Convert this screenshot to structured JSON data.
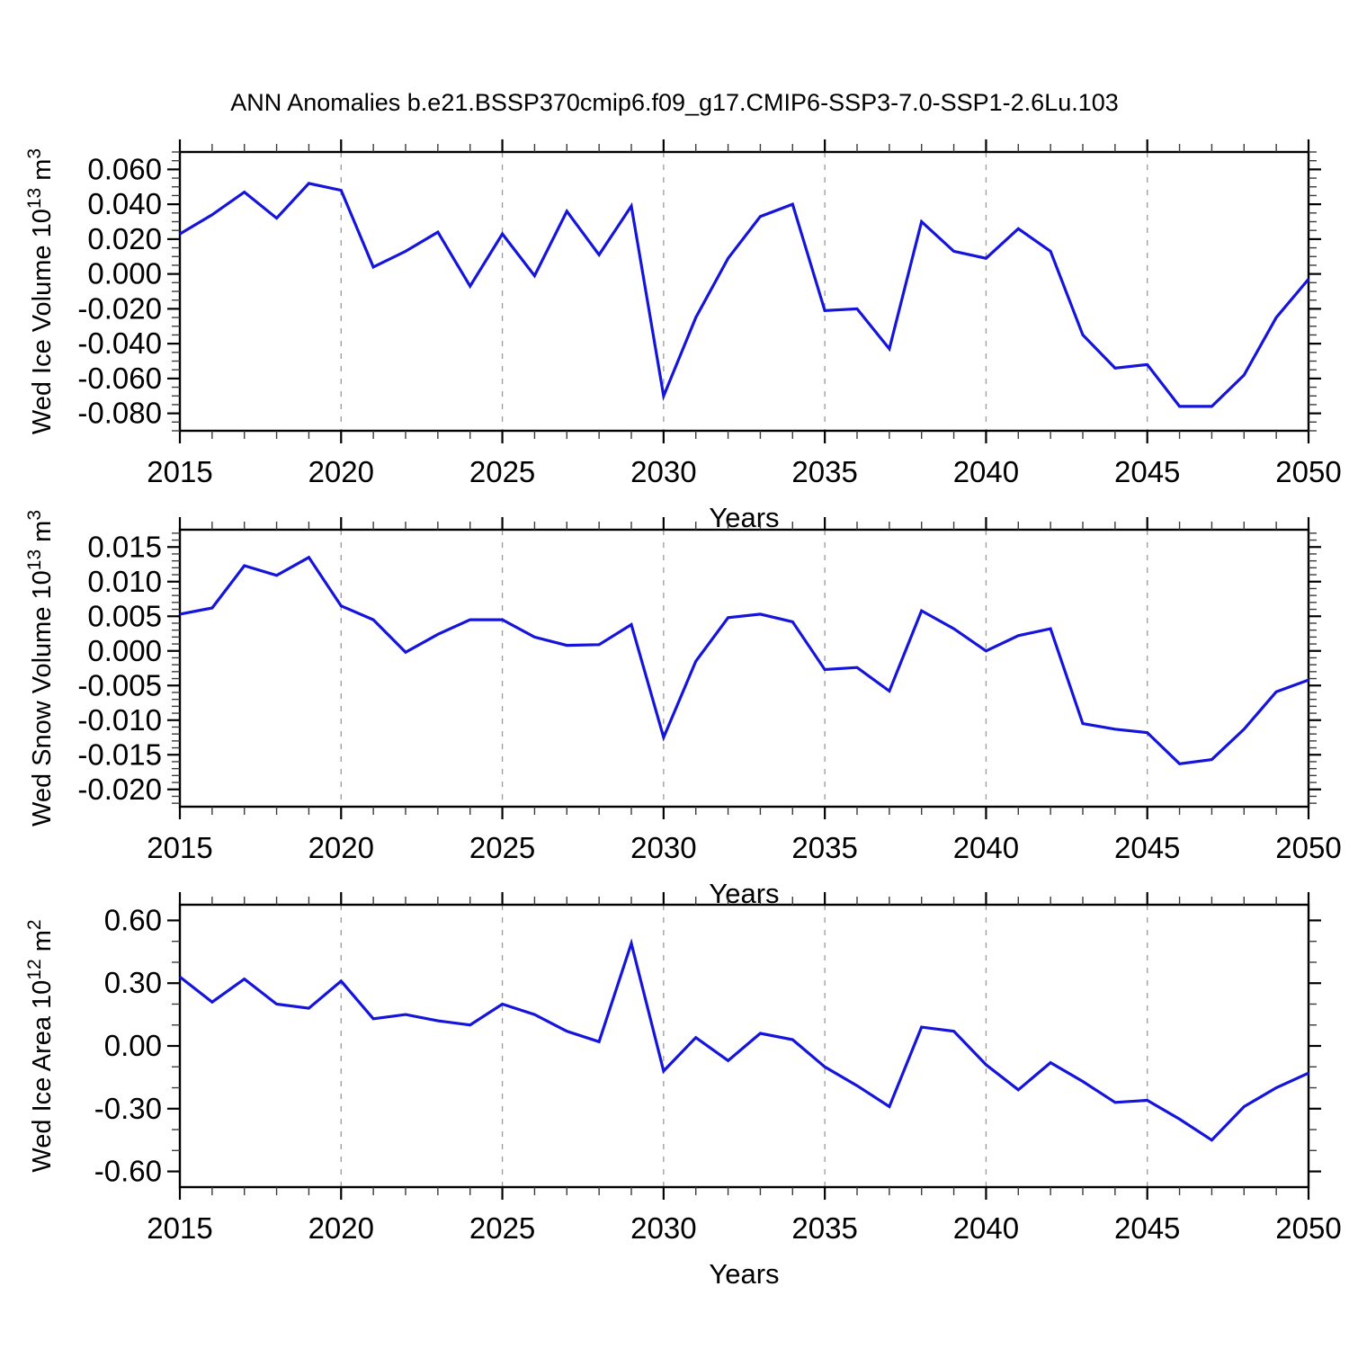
{
  "title": "ANN Anomalies b.e21.BSSP370cmip6.f09_g17.CMIP6-SSP3-7.0-SSP1-2.6Lu.103",
  "chart_data": {
    "type": "line",
    "line_color": "#1414DC",
    "axis_color": "#000000",
    "grid_color": "#9a9a9a",
    "grid_style": "dashed-vertical",
    "legend": "none",
    "xlabel": "Years",
    "xlim": [
      2015,
      2050
    ],
    "xtick_labels": [
      "2015",
      "2020",
      "2025",
      "2030",
      "2035",
      "2040",
      "2045",
      "2050"
    ],
    "xtick_values": [
      2015,
      2020,
      2025,
      2030,
      2035,
      2040,
      2045,
      2050
    ],
    "xminor_step": 1,
    "grid_x": [
      2020,
      2025,
      2030,
      2035,
      2040,
      2045
    ],
    "years": [
      2015,
      2016,
      2017,
      2018,
      2019,
      2020,
      2021,
      2022,
      2023,
      2024,
      2025,
      2026,
      2027,
      2028,
      2029,
      2030,
      2031,
      2032,
      2033,
      2034,
      2035,
      2036,
      2037,
      2038,
      2039,
      2040,
      2041,
      2042,
      2043,
      2044,
      2045,
      2046,
      2047,
      2048,
      2049,
      2050
    ],
    "panels": [
      {
        "name": "wed-ice-volume",
        "ylabel": "Wed Ice Volume 10^13 m^3",
        "ylabel_parts": [
          {
            "text": "Wed Ice Volume 10",
            "sup": false
          },
          {
            "text": "13",
            "sup": true
          },
          {
            "text": " m",
            "sup": false
          },
          {
            "text": "3",
            "sup": true
          }
        ],
        "ylim": [
          -0.09,
          0.07
        ],
        "ytick_labels": [
          "0.060",
          "0.040",
          "0.020",
          "0.000",
          "-0.020",
          "-0.040",
          "-0.060",
          "-0.080"
        ],
        "ytick_values": [
          0.06,
          0.04,
          0.02,
          0.0,
          -0.02,
          -0.04,
          -0.06,
          -0.08
        ],
        "yminor_step": 0.005,
        "values": [
          0.023,
          0.034,
          0.047,
          0.032,
          0.052,
          0.048,
          0.004,
          0.013,
          0.024,
          -0.007,
          0.023,
          -0.001,
          0.036,
          0.011,
          0.039,
          -0.07,
          -0.025,
          0.009,
          0.033,
          0.04,
          -0.021,
          -0.02,
          -0.043,
          0.03,
          0.013,
          0.009,
          0.026,
          0.013,
          -0.035,
          -0.054,
          -0.052,
          -0.076,
          -0.076,
          -0.058,
          -0.025,
          -0.003
        ]
      },
      {
        "name": "wed-snow-volume",
        "ylabel": "Wed Snow Volume 10^13 m^3",
        "ylabel_parts": [
          {
            "text": "Wed Snow Volume 10",
            "sup": false
          },
          {
            "text": "13",
            "sup": true
          },
          {
            "text": " m",
            "sup": false
          },
          {
            "text": "3",
            "sup": true
          }
        ],
        "ylim": [
          -0.0225,
          0.0175
        ],
        "ytick_labels": [
          "0.015",
          "0.010",
          "0.005",
          "0.000",
          "-0.005",
          "-0.010",
          "-0.015",
          "-0.020"
        ],
        "ytick_values": [
          0.015,
          0.01,
          0.005,
          0.0,
          -0.005,
          -0.01,
          -0.015,
          -0.02
        ],
        "yminor_step": 0.001,
        "values": [
          0.0053,
          0.0062,
          0.0123,
          0.0109,
          0.0135,
          0.0065,
          0.0045,
          -0.0002,
          0.0024,
          0.0045,
          0.0045,
          0.002,
          0.0008,
          0.0009,
          0.0038,
          -0.0125,
          -0.0015,
          0.0048,
          0.0053,
          0.0042,
          -0.0027,
          -0.0024,
          -0.0058,
          0.0058,
          0.0032,
          0.0,
          0.0022,
          0.0032,
          -0.0105,
          -0.0113,
          -0.0118,
          -0.0163,
          -0.0157,
          -0.0113,
          -0.0059,
          -0.0042
        ]
      },
      {
        "name": "wed-ice-area",
        "ylabel": "Wed Ice Area 10^12 m^2",
        "ylabel_parts": [
          {
            "text": "Wed Ice Area 10",
            "sup": false
          },
          {
            "text": "12",
            "sup": true
          },
          {
            "text": " m",
            "sup": false
          },
          {
            "text": "2",
            "sup": true
          }
        ],
        "ylim": [
          -0.675,
          0.675
        ],
        "ytick_labels": [
          "0.60",
          "0.30",
          "0.00",
          "-0.30",
          "-0.60"
        ],
        "ytick_values": [
          0.6,
          0.3,
          0.0,
          -0.3,
          -0.6
        ],
        "yminor_step": 0.1,
        "values": [
          0.33,
          0.21,
          0.32,
          0.2,
          0.18,
          0.31,
          0.13,
          0.15,
          0.12,
          0.1,
          0.2,
          0.15,
          0.07,
          0.02,
          0.49,
          -0.12,
          0.04,
          -0.07,
          0.06,
          0.03,
          -0.1,
          -0.19,
          -0.29,
          0.09,
          0.07,
          -0.09,
          -0.21,
          -0.08,
          -0.17,
          -0.27,
          -0.26,
          -0.35,
          -0.45,
          -0.29,
          -0.2,
          -0.13
        ]
      }
    ]
  }
}
